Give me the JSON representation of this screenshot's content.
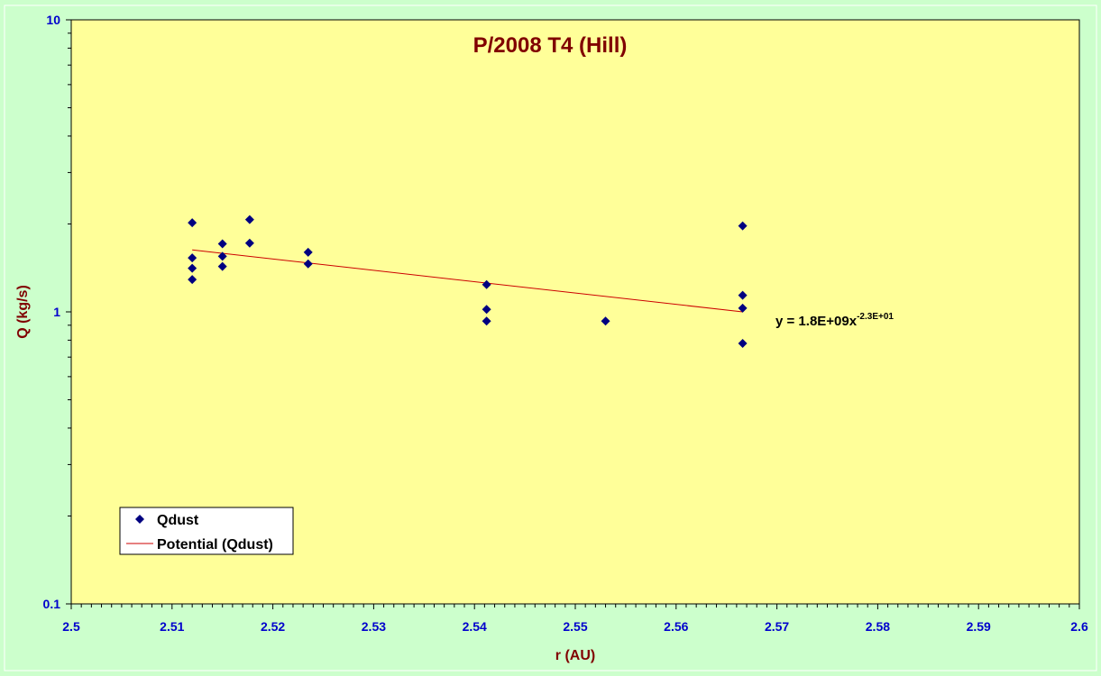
{
  "chart_data": {
    "type": "scatter",
    "title": "P/2008 T4 (Hill)",
    "xlabel": "r (AU)",
    "ylabel": "Q (kg/s)",
    "xlim": [
      2.5,
      2.6
    ],
    "ylim": [
      0.1,
      10
    ],
    "yscale": "log",
    "x_ticks": [
      "2.5",
      "2.51",
      "2.52",
      "2.53",
      "2.54",
      "2.55",
      "2.56",
      "2.57",
      "2.58",
      "2.59",
      "2.6"
    ],
    "y_ticks": [
      "0.1",
      "1",
      "10"
    ],
    "grid": false,
    "legend_position": "bottom-left",
    "series": [
      {
        "name": "Qdust",
        "marker": "diamond",
        "color": "#000080",
        "x": [
          2.512,
          2.512,
          2.512,
          2.512,
          2.515,
          2.515,
          2.515,
          2.5177,
          2.5177,
          2.5235,
          2.5235,
          2.5412,
          2.5412,
          2.5412,
          2.553,
          2.5666,
          2.5666,
          2.5666,
          2.5666
        ],
        "y": [
          2.02,
          1.53,
          1.41,
          1.29,
          1.71,
          1.55,
          1.43,
          2.07,
          1.72,
          1.6,
          1.46,
          1.24,
          1.02,
          0.93,
          0.93,
          1.97,
          1.14,
          1.03,
          0.78
        ]
      },
      {
        "name": "Potential (Qdust)",
        "type": "line",
        "color": "#cc0000",
        "x": [
          2.512,
          2.5666
        ],
        "y": [
          1.63,
          1.0
        ]
      }
    ],
    "annotations": [
      {
        "text": "y = 1.8E+09x",
        "superscript": "-2.3E+01"
      }
    ],
    "colors": {
      "plot_bg": "#ffff99",
      "page_bg": "#ccffcc",
      "title": "#800000",
      "ticks": "#0000cc",
      "axis_title": "#800000"
    }
  }
}
